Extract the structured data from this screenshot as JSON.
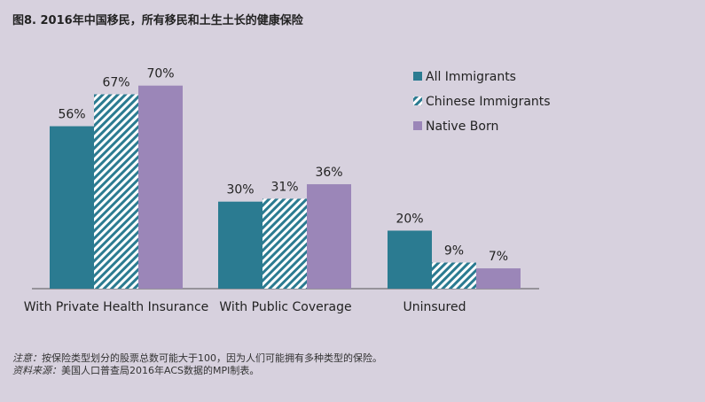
{
  "title": "图8. 2016年中国移民，所有移民和土生土长的健康保险",
  "notes": {
    "note_label": "注意：",
    "note_text": "按保险类型划分的股票总数可能大于100，因为人们可能拥有多种类型的保险。",
    "source_label": "资料来源：",
    "source_text": "美国人口普查局2016年ACS数据的MPI制表。"
  },
  "colors": {
    "all": "#2b7b91",
    "chinese_stripe": "#2b7b91",
    "native": "#9b86b8",
    "axis": "#555555"
  },
  "chart_data": {
    "type": "bar",
    "categories": [
      "With Private Health Insurance",
      "With Public Coverage",
      "Uninsured"
    ],
    "series": [
      {
        "name": "All Immigrants",
        "values": [
          56,
          30,
          20
        ],
        "labels": [
          "56%",
          "30%",
          "20%"
        ]
      },
      {
        "name": "Chinese Immigrants",
        "values": [
          67,
          31,
          9
        ],
        "labels": [
          "67%",
          "31%",
          "9%"
        ]
      },
      {
        "name": "Native Born",
        "values": [
          70,
          36,
          7
        ],
        "labels": [
          "70%",
          "36%",
          "7%"
        ]
      }
    ],
    "ylim": [
      0,
      70
    ],
    "grid": false,
    "legend_position": "top-right"
  }
}
